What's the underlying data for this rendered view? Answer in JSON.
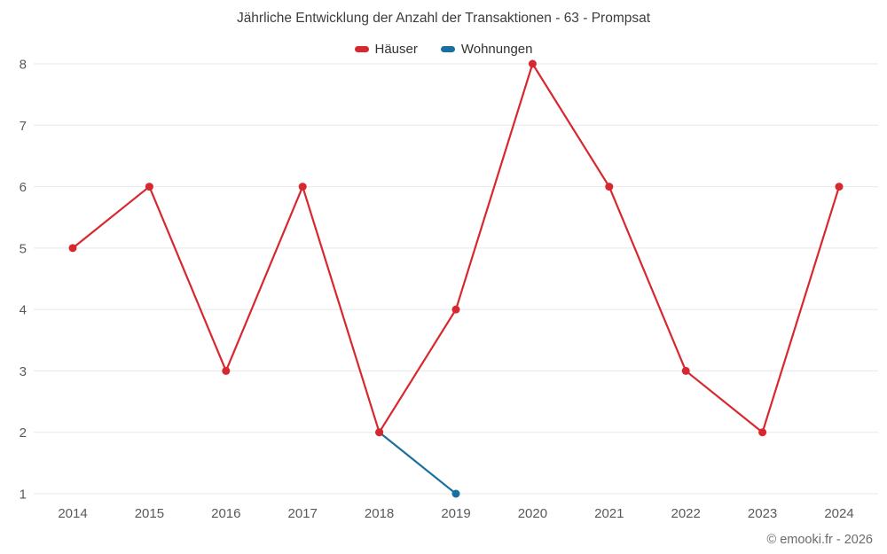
{
  "title": "Jährliche Entwicklung der Anzahl der Transaktionen - 63 - Prompsat",
  "footer": "© emooki.fr - 2026",
  "legend": {
    "items": [
      {
        "label": "Häuser",
        "color": "#d7282f"
      },
      {
        "label": "Wohnungen",
        "color": "#17709f"
      }
    ]
  },
  "chart_data": {
    "type": "line",
    "title": "Jährliche Entwicklung der Anzahl der Transaktionen - 63 - Prompsat",
    "x": [
      2014,
      2015,
      2016,
      2017,
      2018,
      2019,
      2020,
      2021,
      2022,
      2023,
      2024
    ],
    "series": [
      {
        "name": "Häuser",
        "color": "#d7282f",
        "x": [
          2014,
          2015,
          2016,
          2017,
          2018,
          2019,
          2020,
          2021,
          2022,
          2023,
          2024
        ],
        "values": [
          5,
          6,
          3,
          6,
          2,
          4,
          8,
          6,
          3,
          2,
          6
        ]
      },
      {
        "name": "Wohnungen",
        "color": "#17709f",
        "x": [
          2018,
          2019
        ],
        "values": [
          2,
          1
        ]
      }
    ],
    "xlabel": "",
    "ylabel": "",
    "ylim": [
      1,
      8
    ],
    "yticks": [
      1,
      2,
      3,
      4,
      5,
      6,
      7,
      8
    ],
    "grid": true,
    "grid_color": "#e8e8e8",
    "legend_position": "top"
  }
}
